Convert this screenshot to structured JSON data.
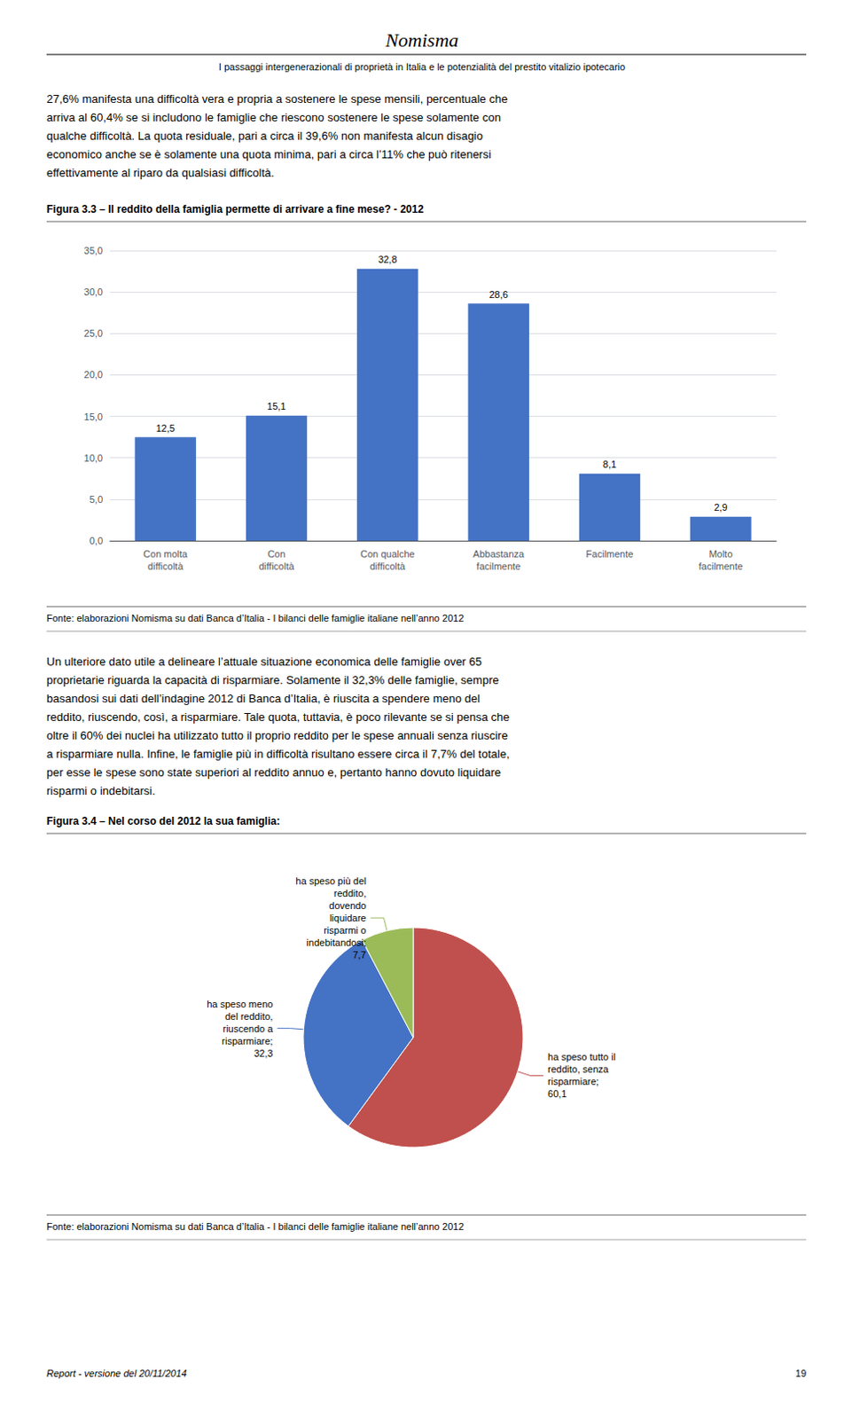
{
  "title": "Nomisma",
  "subtitle": "I passaggi intergenerazionali di proprietà in Italia e le potenzialità del prestito vitalizio ipotecario",
  "annotations": [
    "27,6% manifesta una difficoltà vera e propria a sostenere le spese mensili, percentuale che\narriva al 60,4% se si includono le famiglie che riescono sostenere le spese solamente con\nqualche difficoltà. La quota residuale, pari a circa il 39,6% non manifesta alcun disagio\neconomico anche se è solamente una quota minima, pari a circa l’11% che può ritenersi\neffettivamente al riparo da qualsiasi difficoltà.",
    "Un ulteriore dato utile a delineare l’attuale situazione economica delle famiglie over 65\nproprietarie riguarda la capacità di risparmiare. Solamente il 32,3% delle famiglie, sempre\nbasandosi sui dati dell’indagine 2012 di Banca d’Italia, è riuscita a spendere meno del\nreddito, riuscendo, così, a risparmiare. Tale quota, tuttavia, è poco rilevante se si pensa che\noltre il 60% dei nuclei ha utilizzato tutto il proprio reddito per le spese annuali senza riuscire\na risparmiare nulla. Infine, le famiglie più in difficoltà risultano essere circa il 7,7% del totale,\nper esse le spese sono state superiori al reddito annuo e, pertanto hanno dovuto liquidare\nrisparmi o indebitarsi.",
    "Report - versione del 20/11/2014",
    "19"
  ],
  "chart_data": [
    {
      "type": "bar",
      "title": "Figura 3.3 – Il reddito della famiglia permette di arrivare a fine mese? - 2012",
      "categories": [
        "Con molta\ndifficoltà",
        "Con\ndifficoltà",
        "Con qualche\ndifficoltà",
        "Abbastanza\nfacilmente",
        "Facilmente",
        "Molto\nfacilmente"
      ],
      "values": [
        12.5,
        15.1,
        32.8,
        28.6,
        8.1,
        2.9
      ],
      "value_labels": [
        "12,5",
        "15,1",
        "32,8",
        "28,6",
        "8,1",
        "2,9"
      ],
      "data_labels": true,
      "color": "#4472C4",
      "ylim": [
        0,
        35
      ],
      "yticks": [
        {
          "value": 0,
          "label": "0,0"
        },
        {
          "value": 5,
          "label": "5,0"
        },
        {
          "value": 10,
          "label": "10,0"
        },
        {
          "value": 15,
          "label": "15,0"
        },
        {
          "value": 20,
          "label": "20,0"
        },
        {
          "value": 25,
          "label": "25,0"
        },
        {
          "value": 30,
          "label": "30,0"
        },
        {
          "value": 35,
          "label": "35,0"
        }
      ],
      "grid": true,
      "annotations": [
        "Fonte: elaborazioni Nomisma su dati Banca d’Italia - I bilanci delle famiglie italiane nell’anno 2012"
      ]
    },
    {
      "type": "pie",
      "title": "Figura 3.4 – Nel corso del 2012 la sua famiglia:",
      "values": [
        60.1,
        32.3,
        7.7
      ],
      "value_labels": [
        "ha speso tutto il\nreddito, senza\nrisparmiare;\n60,1",
        "ha speso meno\ndel reddito,\nriuscendo a\nrisparmiare;\n32,3",
        "ha speso più del\nreddito,\ndovendo\nliquidare\nrisparmi o\nindebitandosi;\n7,7"
      ],
      "data_labels": true,
      "colors": [
        "#C0504D",
        "#4472C4",
        "#9BBB59"
      ],
      "annotations": [
        "Fonte: elaborazioni Nomisma su dati Banca d’Italia - I bilanci delle famiglie italiane nell’anno 2012"
      ]
    }
  ]
}
